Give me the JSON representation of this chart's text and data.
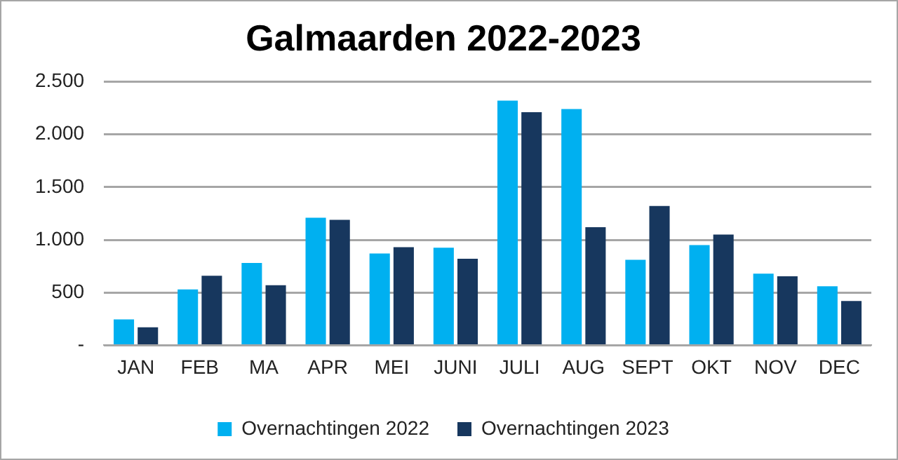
{
  "chart_data": {
    "type": "bar",
    "title": "Galmaarden 2022-2023",
    "categories": [
      "JAN",
      "FEB",
      "MA",
      "APR",
      "MEI",
      "JUNI",
      "JULI",
      "AUG",
      "SEPT",
      "OKT",
      "NOV",
      "DEC"
    ],
    "series": [
      {
        "name": "Overnachtingen 2022",
        "color": "#00b0f0",
        "values": [
          245,
          530,
          780,
          1210,
          870,
          925,
          2320,
          2240,
          810,
          950,
          680,
          560
        ]
      },
      {
        "name": "Overnachtingen 2023",
        "color": "#17375e",
        "values": [
          170,
          660,
          570,
          1190,
          930,
          820,
          2210,
          1120,
          1320,
          1050,
          655,
          420
        ]
      }
    ],
    "ylim": [
      0,
      2500
    ],
    "yticks": [
      {
        "value": 0,
        "label": "-"
      },
      {
        "value": 500,
        "label": "500"
      },
      {
        "value": 1000,
        "label": "1.000"
      },
      {
        "value": 1500,
        "label": "1.500"
      },
      {
        "value": 2000,
        "label": "2.000"
      },
      {
        "value": 2500,
        "label": "2.500"
      }
    ],
    "grid": "y",
    "legend": "bottom"
  }
}
